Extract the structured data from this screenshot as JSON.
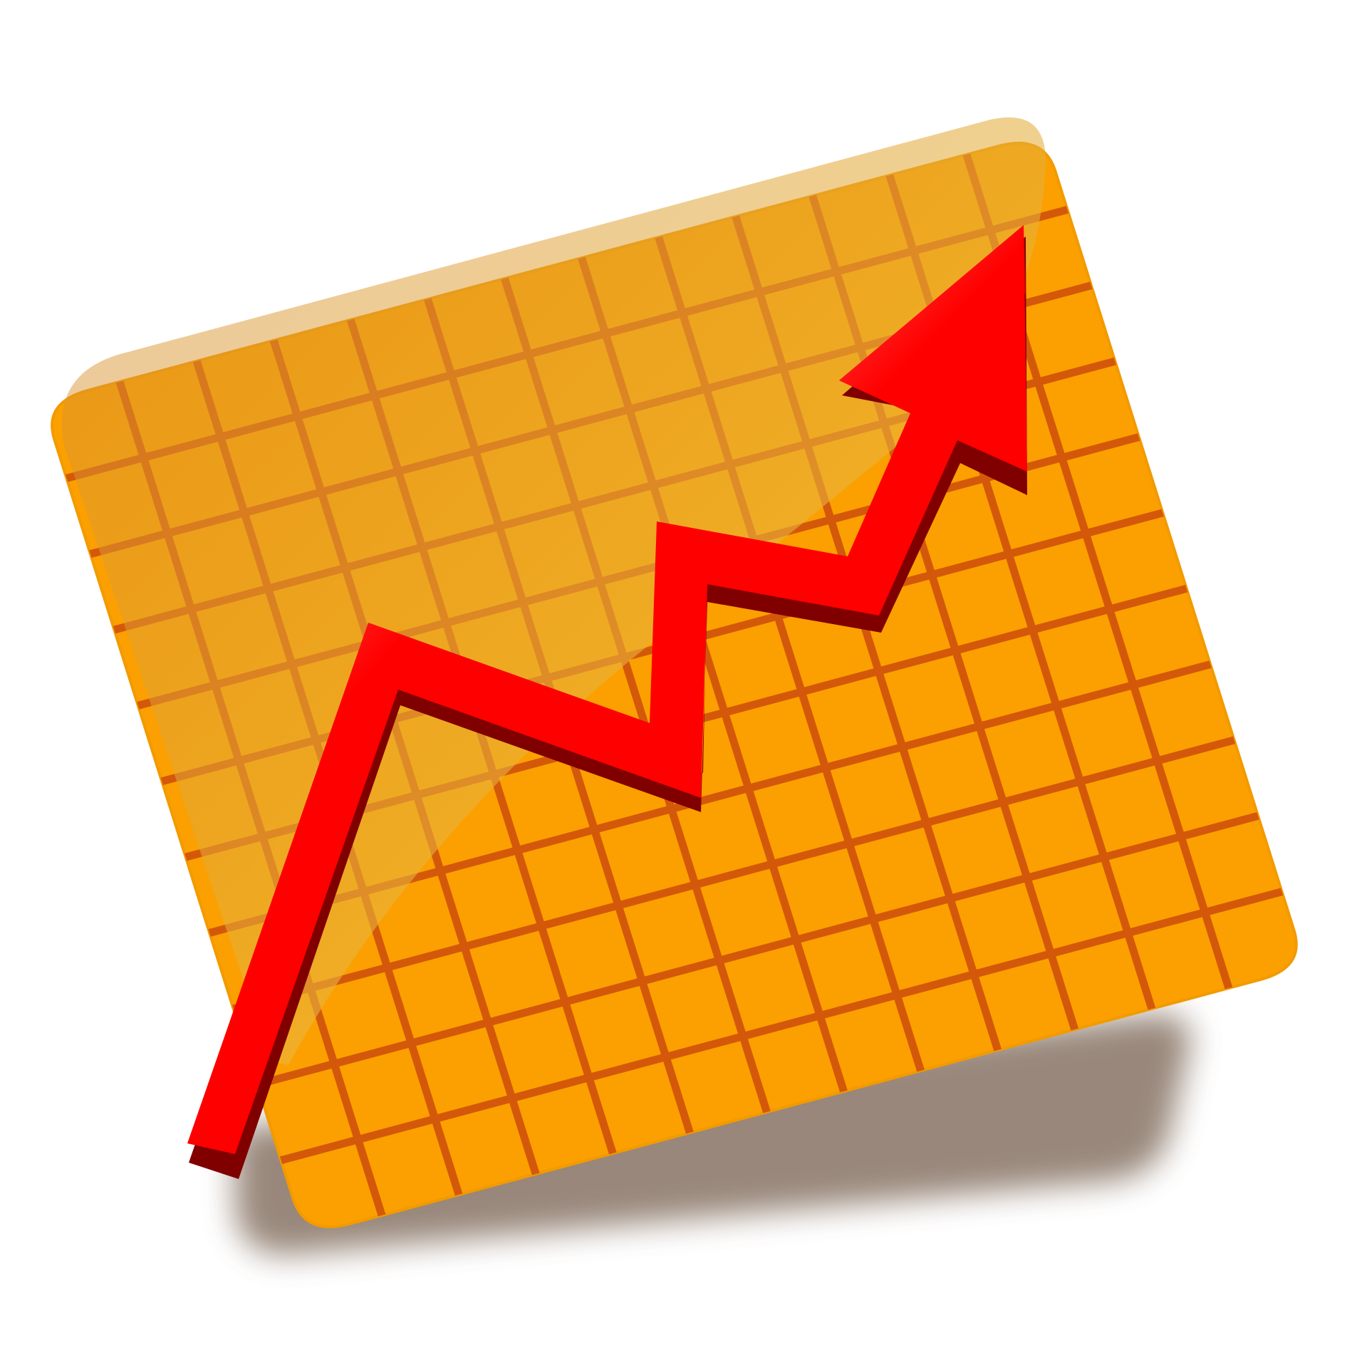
{
  "illustration": {
    "subject": "growth-chart-icon",
    "colors": {
      "background": "#ffffff",
      "board_fill": "#fba000",
      "board_stroke": "#f29a00",
      "grid_line": "#d4580a",
      "arrow_red": "#ff0000",
      "arrow_highlight": "#ffd0d0",
      "arrow_shadow": "#800000",
      "drop_shadow": "#6d5442",
      "gloss": "#f5d34a"
    }
  }
}
